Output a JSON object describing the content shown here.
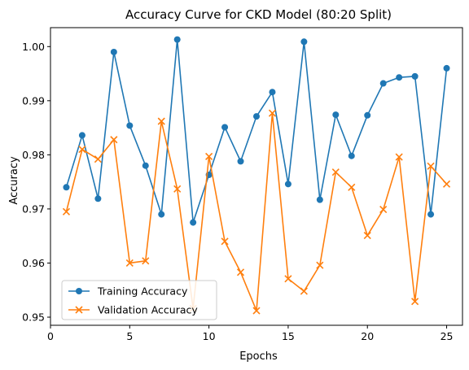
{
  "chart_data": {
    "type": "line",
    "title": "Accuracy Curve for CKD Model (80:20 Split)",
    "xlabel": "Epochs",
    "ylabel": "Accuracy",
    "xlim": [
      0,
      26
    ],
    "ylim": [
      0.9485,
      1.0035
    ],
    "xticks": [
      0,
      5,
      10,
      15,
      20,
      25
    ],
    "yticks": [
      0.95,
      0.96,
      0.97,
      0.98,
      0.99,
      1.0
    ],
    "ytick_labels": [
      "0.95",
      "0.96",
      "0.97",
      "0.98",
      "0.99",
      "1.00"
    ],
    "grid": false,
    "legend_position": "lower-left",
    "x": [
      1,
      2,
      3,
      4,
      5,
      6,
      7,
      8,
      9,
      10,
      11,
      12,
      13,
      14,
      15,
      16,
      17,
      18,
      19,
      20,
      21,
      22,
      23,
      24,
      25
    ],
    "series": [
      {
        "name": "Training Accuracy",
        "color": "#1f77b4",
        "marker": "circle",
        "values": [
          0.974,
          0.9836,
          0.9719,
          0.999,
          0.9854,
          0.978,
          0.969,
          1.0013,
          0.9675,
          0.9763,
          0.9851,
          0.9788,
          0.9871,
          0.9916,
          0.9746,
          1.0009,
          0.9717,
          0.9874,
          0.9798,
          0.9873,
          0.9932,
          0.9943,
          0.9945,
          0.969,
          0.996
        ]
      },
      {
        "name": "Validation Accuracy",
        "color": "#ff7f0e",
        "marker": "x",
        "values": [
          0.9695,
          0.981,
          0.9792,
          0.9828,
          0.96,
          0.9604,
          0.9862,
          0.9737,
          0.9516,
          0.9797,
          0.964,
          0.9583,
          0.9512,
          0.9877,
          0.9571,
          0.9548,
          0.9596,
          0.9768,
          0.974,
          0.9651,
          0.9699,
          0.9796,
          0.9529,
          0.9779,
          0.9746
        ]
      }
    ]
  }
}
